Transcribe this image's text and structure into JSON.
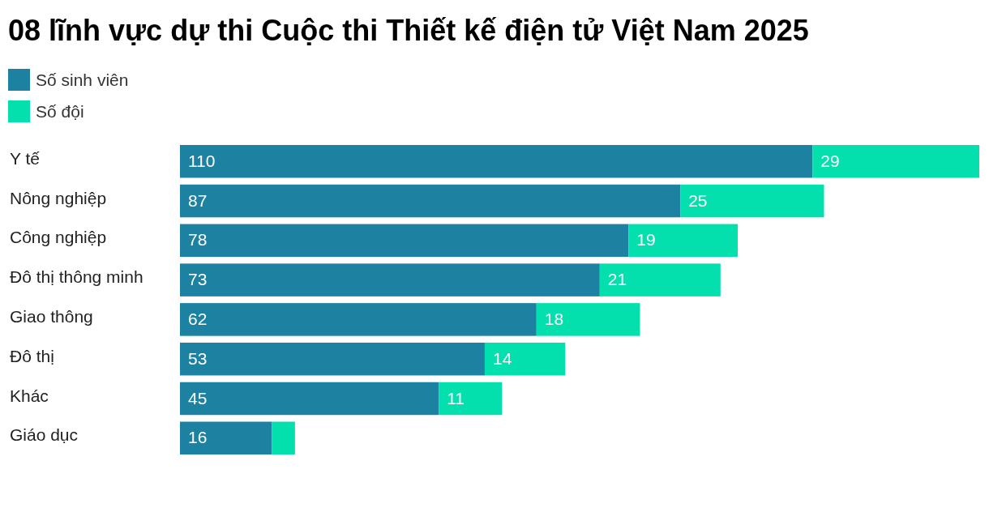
{
  "chart_data": {
    "type": "bar",
    "orientation": "horizontal",
    "stacked": true,
    "title": "08 lĩnh vực dự thi Cuộc thi Thiết kế điện tử Việt Nam 2025",
    "legend": "top left",
    "categories": [
      "Y tế",
      "Nông nghiệp",
      "Công nghiệp",
      "Đô thị thông minh",
      "Giao thông",
      "Đô thị",
      "Khác",
      "Giáo dục"
    ],
    "series": [
      {
        "name": "Số sinh viên",
        "color": "#1d81a2",
        "values": [
          110,
          87,
          78,
          73,
          62,
          53,
          45,
          16
        ],
        "value_labels": [
          "110",
          "87",
          "78",
          "73",
          "62",
          "53",
          "45",
          "16"
        ]
      },
      {
        "name": "Số đội",
        "color": "#03dfad",
        "values": [
          29,
          25,
          19,
          21,
          18,
          14,
          11,
          4
        ],
        "value_labels": [
          "29",
          "25",
          "19",
          "21",
          "18",
          "14",
          "11",
          null
        ]
      }
    ]
  }
}
